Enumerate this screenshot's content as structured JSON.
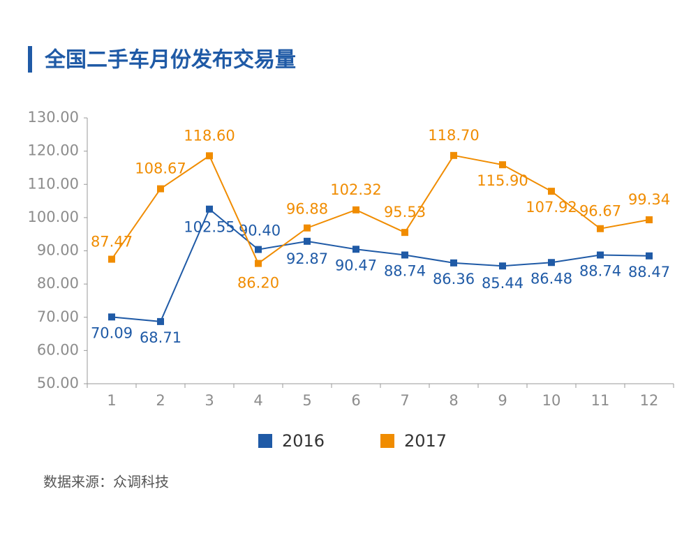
{
  "chart_data": {
    "type": "line",
    "title": "全国二手车月份发布交易量",
    "source": "数据来源：众调科技",
    "categories": [
      "1",
      "2",
      "3",
      "4",
      "5",
      "6",
      "7",
      "8",
      "9",
      "10",
      "11",
      "12"
    ],
    "series": [
      {
        "name": "2016",
        "color": "#1f5aa6",
        "values": [
          70.09,
          68.71,
          102.55,
          90.4,
          92.87,
          90.47,
          88.74,
          86.36,
          85.44,
          86.48,
          88.74,
          88.47
        ],
        "value_labels": [
          "70.09",
          "68.71",
          "102.55",
          "90.40",
          "92.87",
          "90.47",
          "88.74",
          "86.36",
          "85.44",
          "86.48",
          "88.74",
          "88.47"
        ]
      },
      {
        "name": "2017",
        "color": "#f08c00",
        "values": [
          87.47,
          108.67,
          118.6,
          86.2,
          96.88,
          102.32,
          95.53,
          118.7,
          115.9,
          107.92,
          96.67,
          99.34
        ],
        "value_labels": [
          "87.47",
          "108.67",
          "118.60",
          "86.20",
          "96.88",
          "102.32",
          "95.53",
          "118.70",
          "115.90",
          "107.92",
          "96.67",
          "99.34"
        ]
      }
    ],
    "ylim": [
      50,
      130
    ],
    "yticks": [
      {
        "value": 50,
        "label": "50.00"
      },
      {
        "value": 60,
        "label": "60.00"
      },
      {
        "value": 70,
        "label": "70.00"
      },
      {
        "value": 80,
        "label": "80.00"
      },
      {
        "value": 90,
        "label": "90.00"
      },
      {
        "value": 100,
        "label": "100.00"
      },
      {
        "value": 110,
        "label": "110.00"
      },
      {
        "value": 120,
        "label": "120.00"
      },
      {
        "value": 130,
        "label": "130.00"
      }
    ],
    "grid": false
  }
}
